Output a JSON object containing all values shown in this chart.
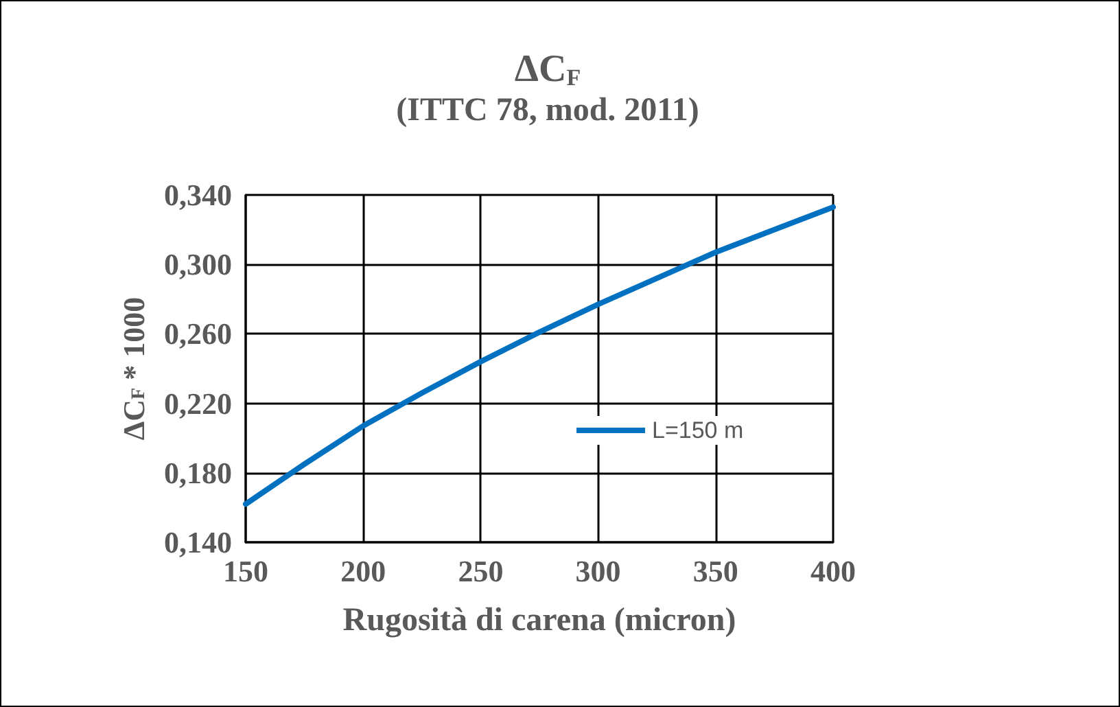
{
  "chart_data": {
    "type": "line",
    "title": "ΔC$_{F}$",
    "subtitle": "(ITTC 78, mod. 2011)",
    "xlabel": "Rugosità di carena (micron)",
    "ylabel": "ΔC$_{F}$ * 1000",
    "x": [
      150,
      175,
      200,
      225,
      250,
      275,
      300,
      325,
      350,
      375,
      400
    ],
    "series": [
      {
        "name": "L=150 m",
        "color": "#0070c0",
        "values": [
          0.162,
          0.185,
          0.207,
          0.226,
          0.244,
          0.261,
          0.277,
          0.292,
          0.307,
          0.32,
          0.333
        ]
      }
    ],
    "xlim": [
      150,
      400
    ],
    "xticks": [
      150,
      200,
      250,
      300,
      350,
      400
    ],
    "ylim": [
      0.14,
      0.34
    ],
    "yticks": [
      {
        "value": 0.14,
        "label": "0,140"
      },
      {
        "value": 0.18,
        "label": "0,180"
      },
      {
        "value": 0.22,
        "label": "0,220"
      },
      {
        "value": 0.26,
        "label": "0,260"
      },
      {
        "value": 0.3,
        "label": "0,300"
      },
      {
        "value": 0.34,
        "label": "0,340"
      }
    ],
    "grid": true,
    "legend": "inside right",
    "marker": "none",
    "line_style": "solid"
  }
}
